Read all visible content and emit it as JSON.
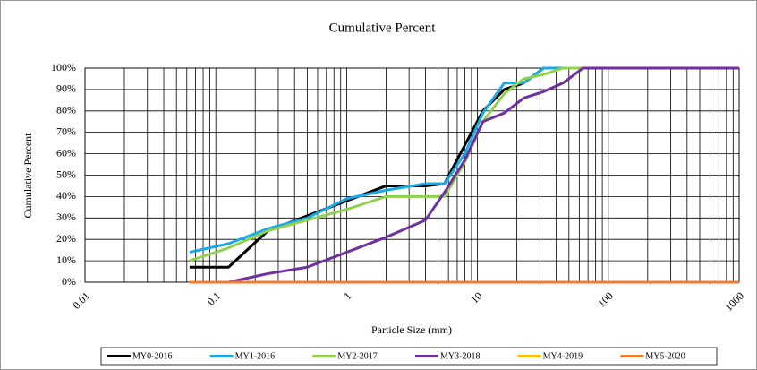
{
  "chart_data": {
    "type": "line",
    "title": "Cumulative Percent",
    "xlabel": "Particle Size (mm)",
    "ylabel": "Cumulative Percent",
    "xscale": "log",
    "grid": true,
    "x": [
      0.063,
      0.125,
      0.25,
      0.5,
      1,
      2,
      4,
      5.6,
      8,
      11,
      16,
      22.6,
      32,
      45,
      64,
      90,
      128,
      256,
      512,
      1000
    ],
    "series": [
      {
        "name": "MY0-2016",
        "color": "#000000",
        "values": [
          7,
          7,
          24,
          31,
          38,
          45,
          45,
          46,
          64,
          80,
          90,
          93,
          100,
          100,
          100,
          100,
          100,
          100,
          100,
          100
        ]
      },
      {
        "name": "MY1-2016",
        "color": "#1ba9e6",
        "values": [
          14,
          18,
          25,
          30,
          39,
          43,
          46,
          46,
          60,
          79,
          93,
          93,
          100,
          100,
          100,
          100,
          100,
          100,
          100,
          100
        ]
      },
      {
        "name": "MY2-2017",
        "color": "#92d050",
        "values": [
          10,
          16,
          24,
          29,
          34,
          40,
          40,
          40,
          56,
          75,
          88,
          95,
          97,
          100,
          100,
          100,
          100,
          100,
          100,
          100
        ]
      },
      {
        "name": "MY3-2018",
        "color": "#7030a0",
        "values": [
          0,
          0,
          4,
          7,
          14,
          21,
          29,
          42,
          57,
          75,
          79,
          86,
          89,
          93,
          100,
          100,
          100,
          100,
          100,
          100
        ]
      },
      {
        "name": "MY4-2019",
        "color": "#ffc000",
        "values": [
          0,
          0,
          0,
          0,
          0,
          0,
          0,
          0,
          0,
          0,
          0,
          0,
          0,
          0,
          0,
          0,
          0,
          0,
          0,
          0
        ]
      },
      {
        "name": "MY5-2020",
        "color": "#ed7d31",
        "values": [
          0,
          0,
          0,
          0,
          0,
          0,
          0,
          0,
          0,
          0,
          0,
          0,
          0,
          0,
          0,
          0,
          0,
          0,
          0,
          0
        ]
      }
    ],
    "xlim": [
      0.01,
      1000
    ],
    "xticks": [
      0.01,
      0.1,
      1,
      10,
      100,
      1000
    ],
    "xminorticks": [
      0.02,
      0.03,
      0.04,
      0.05,
      0.06,
      0.07,
      0.08,
      0.09,
      0.2,
      0.3,
      0.4,
      0.5,
      0.6,
      0.7,
      0.8,
      0.9,
      2,
      3,
      4,
      5,
      6,
      7,
      8,
      9,
      20,
      30,
      40,
      50,
      60,
      70,
      80,
      90,
      200,
      300,
      400,
      500,
      600,
      700,
      800,
      900
    ],
    "ylim": [
      0,
      100
    ],
    "yticks": [
      {
        "value": 0,
        "label": "0%"
      },
      {
        "value": 10,
        "label": "10%"
      },
      {
        "value": 20,
        "label": "20%"
      },
      {
        "value": 30,
        "label": "30%"
      },
      {
        "value": 40,
        "label": "40%"
      },
      {
        "value": 50,
        "label": "50%"
      },
      {
        "value": 60,
        "label": "60%"
      },
      {
        "value": 70,
        "label": "70%"
      },
      {
        "value": 80,
        "label": "80%"
      },
      {
        "value": 90,
        "label": "90%"
      },
      {
        "value": 100,
        "label": "100%"
      }
    ]
  }
}
